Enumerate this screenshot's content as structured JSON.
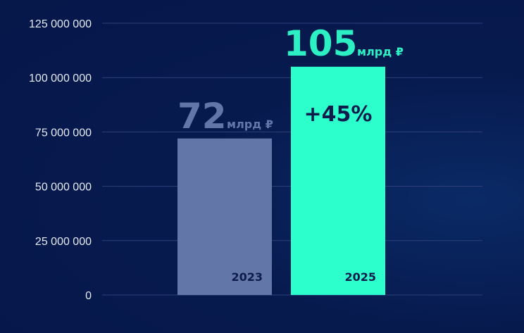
{
  "chart_data": {
    "type": "bar",
    "categories": [
      "2023",
      "2025"
    ],
    "values": [
      72000000,
      105000000
    ],
    "value_labels": [
      "72",
      "105"
    ],
    "unit_label": "млрд ₽",
    "change_label": "+45%",
    "ylim": [
      0,
      125000000
    ],
    "yticks": [
      0,
      25000000,
      50000000,
      75000000,
      100000000,
      125000000
    ],
    "ytick_labels": [
      "0",
      "25 000 000",
      "50 000 000",
      "75 000 000",
      "100 000 000",
      "125 000 000"
    ],
    "grid": true,
    "colors": [
      "#6277a8",
      "#2cffcc"
    ],
    "label_colors": [
      "#6277a8",
      "#2cf0c4"
    ]
  }
}
